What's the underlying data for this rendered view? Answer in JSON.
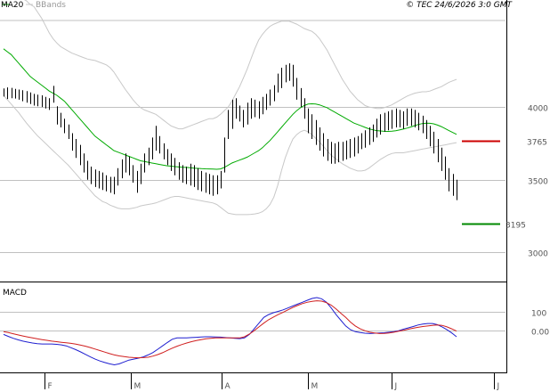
{
  "header": {
    "legend_ma": "MA20",
    "legend_bbands": "BBands",
    "copyright": "© TEC 24/6/2026 3:0 GMT"
  },
  "macd_label": "MACD",
  "colors": {
    "price_bar": "#000000",
    "ma20": "#00aa00",
    "bbands": "#c8c8c8",
    "grid": "#c0c0c0",
    "resistance": "#cc0000",
    "support": "#008800",
    "macd": "#1f1fd0",
    "signal": "#d01f1f",
    "axis": "#000000"
  },
  "chart_data": [
    {
      "type": "ohlc",
      "title": "",
      "x_tick_labels": [
        "F",
        "M",
        "A",
        "M",
        "J",
        "J"
      ],
      "y_ticks": [
        3000,
        3500,
        4000
      ],
      "y_tick_labels": [
        "3000",
        "3500",
        "4000"
      ],
      "ylim": [
        2800,
        4650
      ],
      "grid": true,
      "series": [
        {
          "name": "price",
          "bars": [
            [
              4128,
              4072
            ],
            [
              4135,
              4055
            ],
            [
              4132,
              4060
            ],
            [
              4125,
              4058
            ],
            [
              4120,
              4050
            ],
            [
              4115,
              4040
            ],
            [
              4110,
              4030
            ],
            [
              4100,
              4020
            ],
            [
              4090,
              4010
            ],
            [
              4085,
              4005
            ],
            [
              4080,
              4000
            ],
            [
              4070,
              3990
            ],
            [
              4060,
              3980
            ],
            [
              4145,
              4030
            ],
            [
              4005,
              3880
            ],
            [
              3960,
              3860
            ],
            [
              3920,
              3820
            ],
            [
              3880,
              3780
            ],
            [
              3820,
              3700
            ],
            [
              3780,
              3650
            ],
            [
              3740,
              3600
            ],
            [
              3680,
              3550
            ],
            [
              3630,
              3500
            ],
            [
              3590,
              3470
            ],
            [
              3570,
              3450
            ],
            [
              3560,
              3440
            ],
            [
              3550,
              3430
            ],
            [
              3530,
              3420
            ],
            [
              3520,
              3410
            ],
            [
              3520,
              3400
            ],
            [
              3580,
              3460
            ],
            [
              3640,
              3510
            ],
            [
              3680,
              3550
            ],
            [
              3660,
              3530
            ],
            [
              3600,
              3480
            ],
            [
              3560,
              3410
            ],
            [
              3610,
              3470
            ],
            [
              3680,
              3550
            ],
            [
              3720,
              3600
            ],
            [
              3790,
              3640
            ],
            [
              3870,
              3700
            ],
            [
              3800,
              3680
            ],
            [
              3750,
              3640
            ],
            [
              3710,
              3600
            ],
            [
              3680,
              3560
            ],
            [
              3650,
              3530
            ],
            [
              3620,
              3500
            ],
            [
              3600,
              3480
            ],
            [
              3590,
              3470
            ],
            [
              3610,
              3460
            ],
            [
              3600,
              3450
            ],
            [
              3580,
              3430
            ],
            [
              3560,
              3420
            ],
            [
              3550,
              3410
            ],
            [
              3540,
              3400
            ],
            [
              3530,
              3390
            ],
            [
              3530,
              3400
            ],
            [
              3560,
              3440
            ],
            [
              3790,
              3550
            ],
            [
              3980,
              3780
            ],
            [
              4050,
              3850
            ],
            [
              4060,
              3920
            ],
            [
              4010,
              3900
            ],
            [
              3980,
              3860
            ],
            [
              4030,
              3880
            ],
            [
              4060,
              3920
            ],
            [
              4050,
              3930
            ],
            [
              4040,
              3920
            ],
            [
              4070,
              3950
            ],
            [
              4090,
              3980
            ],
            [
              4120,
              4010
            ],
            [
              4150,
              4040
            ],
            [
              4230,
              4100
            ],
            [
              4270,
              4130
            ],
            [
              4290,
              4170
            ],
            [
              4300,
              4180
            ],
            [
              4290,
              4140
            ],
            [
              4200,
              4050
            ],
            [
              4130,
              4000
            ],
            [
              4060,
              3920
            ],
            [
              3990,
              3820
            ],
            [
              3950,
              3780
            ],
            [
              3910,
              3740
            ],
            [
              3860,
              3700
            ],
            [
              3820,
              3660
            ],
            [
              3780,
              3630
            ],
            [
              3760,
              3610
            ],
            [
              3750,
              3610
            ],
            [
              3760,
              3620
            ],
            [
              3760,
              3630
            ],
            [
              3770,
              3640
            ],
            [
              3780,
              3650
            ],
            [
              3790,
              3660
            ],
            [
              3800,
              3680
            ],
            [
              3820,
              3710
            ],
            [
              3840,
              3720
            ],
            [
              3860,
              3740
            ],
            [
              3880,
              3760
            ],
            [
              3920,
              3790
            ],
            [
              3950,
              3810
            ],
            [
              3960,
              3830
            ],
            [
              3970,
              3840
            ],
            [
              3980,
              3850
            ],
            [
              3990,
              3860
            ],
            [
              3980,
              3860
            ],
            [
              3970,
              3850
            ],
            [
              3990,
              3870
            ],
            [
              3990,
              3870
            ],
            [
              3980,
              3860
            ],
            [
              3960,
              3840
            ],
            [
              3940,
              3820
            ],
            [
              3910,
              3780
            ],
            [
              3870,
              3730
            ],
            [
              3830,
              3680
            ],
            [
              3780,
              3620
            ],
            [
              3720,
              3560
            ],
            [
              3660,
              3500
            ],
            [
              3580,
              3420
            ],
            [
              3540,
              3390
            ],
            [
              3500,
              3360
            ]
          ]
        },
        {
          "name": "MA20",
          "values": [
            4400,
            4380,
            4360,
            4330,
            4300,
            4270,
            4240,
            4210,
            4190,
            4170,
            4150,
            4130,
            4110,
            4095,
            4080,
            4060,
            4040,
            4010,
            3980,
            3950,
            3920,
            3890,
            3860,
            3830,
            3800,
            3780,
            3760,
            3740,
            3720,
            3700,
            3690,
            3680,
            3670,
            3660,
            3650,
            3640,
            3630,
            3625,
            3620,
            3615,
            3610,
            3605,
            3600,
            3596,
            3593,
            3590,
            3588,
            3586,
            3585,
            3583,
            3580,
            3578,
            3576,
            3575,
            3574,
            3573,
            3572,
            3574,
            3585,
            3600,
            3615,
            3625,
            3635,
            3645,
            3655,
            3670,
            3685,
            3700,
            3720,
            3745,
            3770,
            3800,
            3830,
            3860,
            3890,
            3920,
            3950,
            3975,
            3995,
            4010,
            4020,
            4022,
            4020,
            4015,
            4005,
            3995,
            3980,
            3965,
            3950,
            3935,
            3920,
            3905,
            3890,
            3880,
            3870,
            3860,
            3850,
            3843,
            3838,
            3835,
            3833,
            3832,
            3834,
            3837,
            3842,
            3848,
            3855,
            3863,
            3872,
            3880,
            3886,
            3889,
            3888,
            3884,
            3876,
            3865,
            3852,
            3838,
            3825,
            3812
          ]
        },
        {
          "name": "BBands upper",
          "values": [
            4780,
            4775,
            4770,
            4765,
            4760,
            4745,
            4730,
            4705,
            4690,
            4650,
            4610,
            4560,
            4510,
            4470,
            4440,
            4415,
            4400,
            4385,
            4370,
            4360,
            4350,
            4340,
            4330,
            4325,
            4320,
            4310,
            4300,
            4290,
            4270,
            4240,
            4200,
            4160,
            4120,
            4085,
            4050,
            4020,
            3995,
            3980,
            3970,
            3960,
            3950,
            3930,
            3910,
            3890,
            3870,
            3860,
            3850,
            3850,
            3860,
            3870,
            3880,
            3890,
            3900,
            3910,
            3920,
            3920,
            3930,
            3950,
            3975,
            4000,
            4040,
            4090,
            4140,
            4200,
            4260,
            4330,
            4400,
            4460,
            4500,
            4530,
            4555,
            4570,
            4580,
            4590,
            4590,
            4590,
            4580,
            4570,
            4555,
            4540,
            4530,
            4520,
            4500,
            4470,
            4430,
            4390,
            4340,
            4290,
            4240,
            4190,
            4150,
            4110,
            4080,
            4050,
            4030,
            4010,
            4000,
            3995,
            3990,
            3990,
            3995,
            4005,
            4015,
            4030,
            4045,
            4060,
            4075,
            4085,
            4095,
            4100,
            4105,
            4105,
            4110,
            4120,
            4130,
            4140,
            4155,
            4170,
            4180,
            4190
          ]
        },
        {
          "name": "BBands lower",
          "values": [
            4080,
            4050,
            4020,
            3990,
            3960,
            3925,
            3890,
            3860,
            3830,
            3800,
            3775,
            3750,
            3725,
            3700,
            3675,
            3650,
            3625,
            3600,
            3570,
            3540,
            3510,
            3480,
            3450,
            3420,
            3390,
            3370,
            3350,
            3340,
            3325,
            3315,
            3305,
            3300,
            3300,
            3300,
            3305,
            3310,
            3320,
            3325,
            3330,
            3335,
            3340,
            3350,
            3360,
            3370,
            3380,
            3385,
            3385,
            3380,
            3375,
            3370,
            3365,
            3360,
            3355,
            3350,
            3345,
            3340,
            3330,
            3310,
            3290,
            3270,
            3265,
            3260,
            3260,
            3260,
            3260,
            3262,
            3265,
            3270,
            3280,
            3300,
            3330,
            3380,
            3460,
            3560,
            3650,
            3720,
            3780,
            3810,
            3830,
            3840,
            3830,
            3810,
            3785,
            3760,
            3730,
            3700,
            3670,
            3650,
            3630,
            3610,
            3595,
            3580,
            3570,
            3560,
            3560,
            3565,
            3580,
            3600,
            3620,
            3640,
            3655,
            3670,
            3680,
            3685,
            3685,
            3685,
            3690,
            3695,
            3700,
            3705,
            3710,
            3715,
            3720,
            3725,
            3730,
            3735,
            3740,
            3745,
            3750,
            3755
          ]
        }
      ],
      "annotations": [
        {
          "name": "resistance",
          "value": 3765,
          "label": "3765"
        },
        {
          "name": "support",
          "value": 3195,
          "label": "3195"
        }
      ]
    },
    {
      "type": "line",
      "title": "MACD",
      "y_ticks": [
        100,
        0
      ],
      "y_tick_labels": [
        "100",
        "0.00"
      ],
      "ylim": [
        -220,
        250
      ],
      "grid": true,
      "series": [
        {
          "name": "MACD",
          "values": [
            -20,
            -30,
            -40,
            -48,
            -55,
            -60,
            -65,
            -68,
            -70,
            -70,
            -70,
            -72,
            -75,
            -80,
            -90,
            -100,
            -112,
            -125,
            -138,
            -150,
            -160,
            -168,
            -175,
            -180,
            -175,
            -165,
            -155,
            -150,
            -145,
            -138,
            -128,
            -115,
            -98,
            -80,
            -62,
            -45,
            -38,
            -38,
            -38,
            -36,
            -35,
            -33,
            -32,
            -32,
            -33,
            -34,
            -36,
            -38,
            -40,
            -42,
            -38,
            -20,
            10,
            40,
            70,
            85,
            95,
            102,
            110,
            120,
            130,
            140,
            150,
            160,
            170,
            175,
            168,
            150,
            120,
            85,
            55,
            25,
            5,
            -5,
            -10,
            -13,
            -15,
            -13,
            -12,
            -11,
            -8,
            -5,
            0,
            8,
            15,
            22,
            30,
            35,
            38,
            38,
            32,
            20,
            5,
            -12,
            -32
          ]
        },
        {
          "name": "Signal",
          "values": [
            -5,
            -10,
            -16,
            -22,
            -28,
            -33,
            -38,
            -43,
            -47,
            -51,
            -55,
            -58,
            -61,
            -64,
            -67,
            -71,
            -76,
            -82,
            -89,
            -97,
            -105,
            -113,
            -121,
            -128,
            -133,
            -137,
            -140,
            -142,
            -143,
            -142,
            -140,
            -134,
            -126,
            -116,
            -104,
            -92,
            -82,
            -73,
            -65,
            -58,
            -52,
            -47,
            -43,
            -40,
            -38,
            -38,
            -38,
            -38,
            -38,
            -38,
            -32,
            -18,
            0,
            20,
            40,
            58,
            72,
            85,
            97,
            110,
            122,
            133,
            143,
            150,
            155,
            158,
            156,
            148,
            135,
            115,
            92,
            70,
            45,
            25,
            10,
            0,
            -8,
            -12,
            -15,
            -14,
            -12,
            -8,
            -3,
            2,
            8,
            13,
            18,
            22,
            25,
            28,
            30,
            28,
            20,
            10,
            -2
          ]
        }
      ]
    }
  ]
}
